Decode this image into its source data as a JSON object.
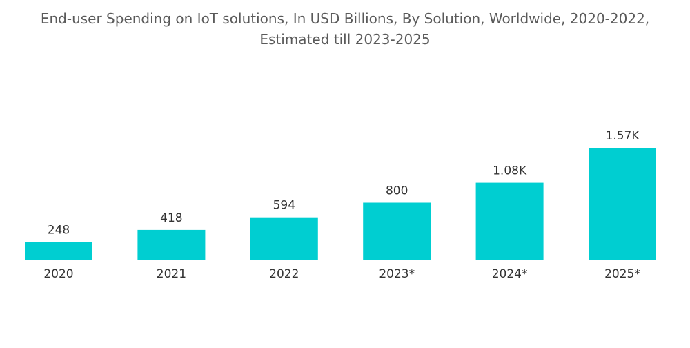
{
  "title": {
    "line1": "End-user Spending on IoT solutions, In USD Billions, By Solution, Worldwide, 2020-2022,",
    "line2": "Estimated till 2023-2025"
  },
  "colors": {
    "bar": "#00CED1",
    "label": "#333333",
    "title": "#5a5a5a"
  },
  "chart_data": {
    "type": "bar",
    "title": "End-user Spending on IoT solutions, In USD Billions, By Solution, Worldwide, 2020-2022, Estimated till 2023-2025",
    "categories": [
      "2020",
      "2021",
      "2022",
      "2023*",
      "2024*",
      "2025*"
    ],
    "values": [
      248,
      418,
      594,
      800,
      1080,
      1570
    ],
    "data_labels": [
      "248",
      "418",
      "594",
      "800",
      "1.08K",
      "1.57K"
    ],
    "xlabel": "",
    "ylabel": "",
    "ylim": [
      0,
      1570
    ],
    "grid": false,
    "legend": "none"
  }
}
